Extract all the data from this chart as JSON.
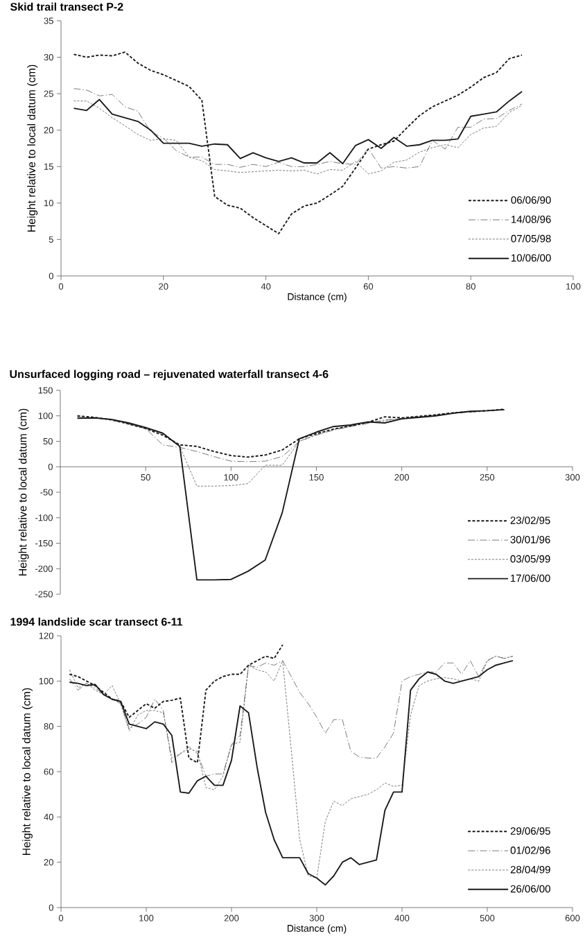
{
  "chart_data": [
    {
      "type": "line",
      "title": "Skid trail transect P-2",
      "xlabel": "Distance (cm)",
      "ylabel": "Height relative to local datum (cm)",
      "xlim": [
        0,
        100
      ],
      "ylim": [
        0,
        35
      ],
      "xticks": [
        0,
        20,
        40,
        60,
        80,
        100
      ],
      "yticks": [
        0,
        5,
        10,
        15,
        20,
        25,
        30,
        35
      ],
      "legend": "bottom right",
      "x": [
        2.5,
        5,
        7.5,
        10,
        12.5,
        15,
        17.5,
        20,
        22.5,
        25,
        27.5,
        30,
        32.5,
        35,
        37.5,
        40,
        42.5,
        45,
        47.5,
        50,
        52.5,
        55,
        57.5,
        60,
        62.5,
        65,
        67.5,
        70,
        72.5,
        75,
        77.5,
        80,
        82.5,
        85,
        87.5,
        90
      ],
      "series": [
        {
          "name": "06/06/90",
          "color": "#1a1a1a",
          "line_style": "dashed",
          "values": [
            30.4,
            30,
            30.3,
            30.2,
            30.7,
            29.2,
            28.2,
            27.6,
            26.8,
            26,
            24.1,
            10.9,
            9.7,
            9.3,
            8.0,
            6.9,
            5.8,
            8.5,
            9.6,
            10,
            11.1,
            12.3,
            14.8,
            17.4,
            18,
            18.5,
            20.3,
            22,
            23.2,
            24,
            24.8,
            25.9,
            27.2,
            27.9,
            29.8,
            30.3
          ]
        },
        {
          "name": "14/08/96",
          "color": "#404040",
          "line_style": "dashdot",
          "values": [
            25.7,
            25.5,
            24.7,
            24.9,
            23.2,
            22.6,
            19.8,
            18.9,
            17.2,
            16.3,
            16.3,
            15.3,
            15.3,
            14.9,
            15.3,
            15.0,
            15.6,
            15.0,
            15.0,
            15.3,
            15.7,
            15.4,
            15.3,
            17.5,
            14.8,
            15.0,
            14.8,
            15.0,
            18.6,
            17.4,
            20.4,
            20.4,
            21.5,
            21.6,
            22.7,
            23.6
          ]
        },
        {
          "name": "07/05/98",
          "color": "#404040",
          "line_style": "dotted",
          "values": [
            24,
            24,
            23,
            21.7,
            20.6,
            19.4,
            18.6,
            18.8,
            18.6,
            16.3,
            15.8,
            14.6,
            14.4,
            14.2,
            14.3,
            14.4,
            14.5,
            14.4,
            14.5,
            14.0,
            14.6,
            14.5,
            15.7,
            14.0,
            14.4,
            15.6,
            15.9,
            17.0,
            17.6,
            18.0,
            17.6,
            19.4,
            20.3,
            20.5,
            22.4,
            23.4
          ]
        },
        {
          "name": "10/06/00",
          "color": "#1a1a1a",
          "line_style": "solid",
          "values": [
            23,
            22.7,
            24.2,
            22.2,
            21.7,
            21.2,
            20.0,
            18.2,
            18.2,
            18.2,
            17.8,
            18.1,
            18.0,
            16.1,
            16.9,
            16.2,
            15.7,
            16.2,
            15.5,
            15.5,
            16.9,
            15.4,
            17.9,
            18.7,
            17.5,
            19.0,
            17.8,
            18.0,
            18.6,
            18.6,
            18.8,
            21.9,
            22.2,
            22.5,
            24.0,
            25.3
          ]
        }
      ]
    },
    {
      "type": "line",
      "title": "Unsurfaced logging road – rejuvenated waterfall transect 4-6",
      "ylabel": "Height relative to local datum (cm)",
      "xlim": [
        0,
        300
      ],
      "ylim": [
        -250,
        150
      ],
      "xticks": [
        50,
        100,
        150,
        200,
        250,
        300
      ],
      "yticks": [
        -250,
        -200,
        -150,
        -100,
        -50,
        0,
        50,
        100,
        150
      ],
      "legend": "bottom right",
      "x": [
        10,
        20,
        30,
        40,
        50,
        60,
        70,
        80,
        90,
        100,
        110,
        120,
        130,
        140,
        150,
        160,
        170,
        180,
        190,
        200,
        210,
        220,
        230,
        240,
        250,
        260
      ],
      "series": [
        {
          "name": "23/02/95",
          "color": "#1a1a1a",
          "line_style": "dashed",
          "values": [
            100,
            97,
            92,
            84,
            75,
            62,
            43,
            40,
            30,
            22,
            19,
            23,
            33,
            55,
            65,
            74,
            80,
            87,
            98,
            96,
            99,
            102,
            106,
            108,
            110,
            113
          ]
        },
        {
          "name": "30/01/96",
          "color": "#404040",
          "line_style": "dashdot",
          "values": [
            97,
            96,
            92,
            84,
            75,
            43,
            38,
            30,
            20,
            11,
            10,
            11,
            20,
            50,
            62,
            72,
            79,
            85,
            92,
            95,
            98,
            101,
            105,
            107,
            110,
            112
          ]
        },
        {
          "name": "03/05/99",
          "color": "#404040",
          "line_style": "dotted",
          "values": [
            97,
            96,
            92,
            84,
            75,
            65,
            40,
            -38,
            -38,
            -37,
            -33,
            3,
            3,
            50,
            63,
            73,
            80,
            86,
            90,
            95,
            98,
            101,
            105,
            108,
            110,
            112
          ]
        },
        {
          "name": "17/06/00",
          "color": "#1a1a1a",
          "line_style": "solid",
          "values": [
            95,
            96,
            93,
            86,
            77,
            66,
            40,
            -222,
            -222,
            -221,
            -205,
            -183,
            -90,
            55,
            68,
            79,
            82,
            88,
            86,
            94,
            97,
            100,
            105,
            109,
            110,
            112
          ]
        }
      ]
    },
    {
      "type": "line",
      "title": "1994 landslide scar transect 6-11",
      "xlabel": "Distance (cm)",
      "ylabel": "Height relative to local datum (cm)",
      "xlim": [
        0,
        600
      ],
      "ylim": [
        0,
        120
      ],
      "xticks": [
        0,
        100,
        200,
        300,
        400,
        500,
        600
      ],
      "yticks": [
        0,
        20,
        40,
        60,
        80,
        100,
        120
      ],
      "legend": "bottom right",
      "x": [
        10,
        20,
        30,
        40,
        50,
        60,
        70,
        80,
        90,
        100,
        110,
        120,
        130,
        140,
        150,
        160,
        170,
        180,
        190,
        200,
        210,
        220,
        230,
        240,
        250,
        260,
        270,
        280,
        290,
        300,
        310,
        320,
        330,
        340,
        350,
        360,
        370,
        380,
        390,
        400,
        410,
        420,
        430,
        440,
        450,
        460,
        470,
        480,
        490,
        500,
        510,
        520,
        530
      ],
      "series": [
        {
          "name": "29/06/95",
          "color": "#1a1a1a",
          "line_style": "dashed",
          "values": [
            103,
            102,
            100,
            98,
            95,
            92,
            91,
            84,
            87,
            90,
            88,
            91,
            91.5,
            92.5,
            66,
            64,
            96,
            100,
            102,
            103,
            103,
            107,
            109,
            111,
            110,
            116,
            null,
            null,
            null,
            null,
            null,
            null,
            null,
            null,
            null,
            null,
            null,
            null,
            null,
            null,
            null,
            null,
            null,
            null,
            null,
            null,
            null,
            null,
            null,
            null,
            null,
            null,
            null
          ]
        },
        {
          "name": "01/02/96",
          "color": "#404040",
          "line_style": "dashdot",
          "values": [
            101,
            96,
            99,
            97,
            94,
            92,
            90,
            79,
            81,
            84,
            92,
            87,
            64,
            68,
            71,
            68,
            58,
            59,
            59,
            72,
            76,
            107,
            106,
            108,
            107,
            109,
            102,
            95,
            90,
            84,
            77,
            83,
            83,
            69,
            66.5,
            66,
            66,
            71,
            77,
            100,
            102,
            103,
            104,
            104,
            108,
            108,
            103,
            109,
            102,
            109,
            111,
            110,
            111
          ]
        },
        {
          "name": "28/04/99",
          "color": "#404040",
          "line_style": "dotted",
          "values": [
            105,
            97,
            99,
            96,
            94,
            98,
            90,
            78,
            85,
            87,
            87,
            86,
            66,
            68,
            70,
            69,
            53,
            52,
            58,
            72,
            73,
            107,
            105,
            104,
            100,
            109,
            70,
            30,
            14,
            13,
            38,
            47,
            45,
            48,
            49,
            50,
            52,
            55,
            53.5,
            54,
            85,
            98,
            100,
            101,
            101.5,
            101,
            100,
            101,
            100,
            109,
            111,
            110,
            111
          ]
        },
        {
          "name": "26/06/00",
          "color": "#1a1a1a",
          "line_style": "solid",
          "values": [
            99.5,
            99,
            98,
            98.5,
            94,
            92,
            91,
            81,
            80,
            79,
            82,
            81,
            76,
            51,
            50.5,
            56,
            58,
            54,
            54,
            65,
            89,
            86,
            62,
            42,
            30,
            22,
            22,
            22,
            15,
            13,
            10,
            14,
            20,
            22,
            19,
            20,
            21,
            43,
            51,
            51,
            96,
            101,
            104,
            103,
            100,
            99,
            100,
            101,
            102,
            105,
            107,
            108,
            109
          ]
        }
      ]
    }
  ]
}
